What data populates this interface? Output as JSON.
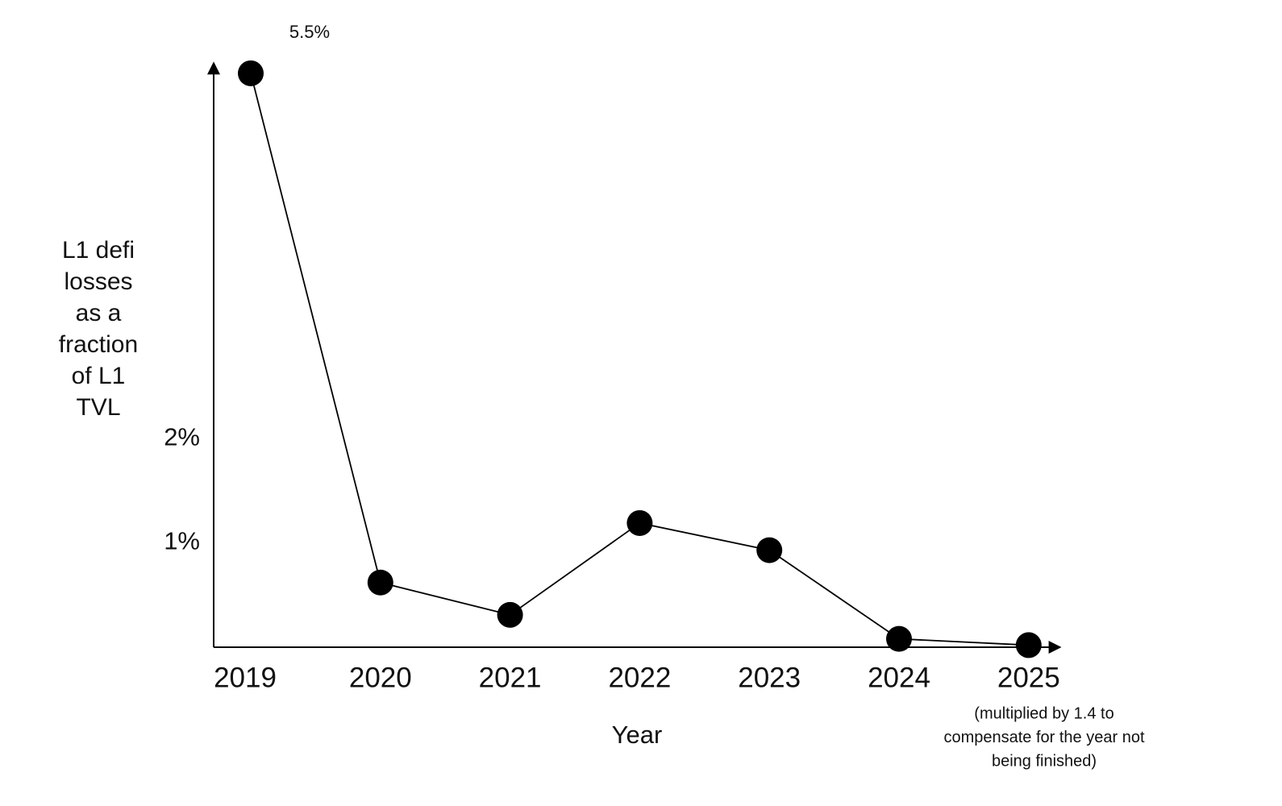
{
  "chart_data": {
    "type": "line",
    "categories": [
      "2019",
      "2020",
      "2021",
      "2022",
      "2023",
      "2024",
      "2025"
    ],
    "values": [
      5.5,
      0.62,
      0.31,
      1.19,
      0.93,
      0.08,
      0.02
    ],
    "value_labels": [
      "5.5%",
      null,
      null,
      null,
      null,
      null,
      null
    ],
    "color": "#000000",
    "ylim": [
      0,
      5.6
    ],
    "yticks": [
      {
        "value": 1,
        "label": "1%"
      },
      {
        "value": 2,
        "label": "2%"
      }
    ],
    "ylabel": [
      "L1 defi",
      "losses",
      "as a",
      "fraction",
      "of L1",
      "TVL"
    ],
    "xlabel": "Year",
    "note": [
      "(multiplied by 1.4 to",
      "compensate for the year not",
      "being finished)"
    ]
  }
}
